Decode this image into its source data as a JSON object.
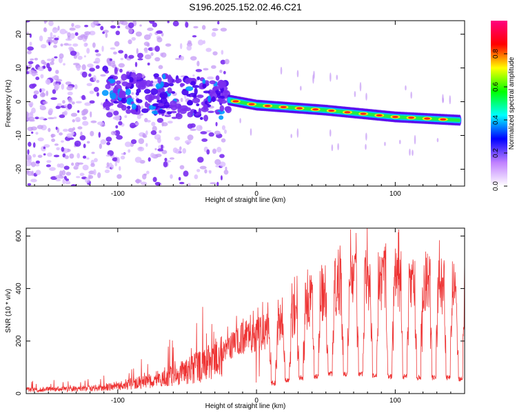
{
  "title": "S196.2025.152.02.46.C21",
  "chart_data": [
    {
      "type": "heatmap",
      "xlabel": "Height of straight line (km)",
      "ylabel": "Frequency (Hz)",
      "xlim": [
        -166,
        150
      ],
      "ylim": [
        -25,
        24
      ],
      "x_ticks": [
        -100,
        0,
        100
      ],
      "y_ticks": [
        -20,
        -10,
        0,
        10,
        20
      ],
      "colorbar": {
        "label": "Normalized spectral amplitude",
        "range": [
          0,
          1
        ],
        "ticks": [
          0.0,
          0.2,
          0.4,
          0.6,
          0.8
        ],
        "tick_labels": [
          "0.0",
          "0.2",
          "0.4",
          "0.6",
          "0.8"
        ],
        "colors": [
          "#ffffff",
          "#c080ff",
          "#0000ff",
          "#00ffff",
          "#00ff00",
          "#ffff00",
          "#ff0000",
          "#ff0080"
        ]
      },
      "ridge": {
        "description_points_x": [
          -20,
          0,
          50,
          100,
          147
        ],
        "description_points_y": [
          0.5,
          -1,
          -2.5,
          -4.5,
          -5.5
        ]
      }
    },
    {
      "type": "line",
      "xlabel": "Height of straight line (km)",
      "ylabel": "SNR (10 * v/v)",
      "xlim": [
        -166,
        150
      ],
      "ylim": [
        0,
        630
      ],
      "x_ticks": [
        -100,
        0,
        100
      ],
      "y_ticks": [
        0,
        200,
        400,
        600
      ],
      "series_color": "#ee3333",
      "envelope_x": [
        -166,
        -120,
        -100,
        -80,
        -60,
        -40,
        -25,
        -15,
        -10,
        0,
        10,
        20,
        30,
        40,
        50,
        60,
        80,
        100,
        120,
        140,
        150
      ],
      "envelope_y": [
        20,
        25,
        40,
        60,
        90,
        140,
        190,
        230,
        250,
        260,
        290,
        320,
        360,
        420,
        460,
        480,
        500,
        520,
        500,
        470,
        480
      ],
      "dip_x": [
        12,
        22,
        32,
        43,
        53,
        64,
        75,
        85,
        96,
        107,
        117,
        128,
        138,
        147
      ],
      "dip_y": [
        30,
        40,
        50,
        55,
        65,
        65,
        65,
        60,
        55,
        55,
        50,
        50,
        50,
        45
      ]
    }
  ]
}
